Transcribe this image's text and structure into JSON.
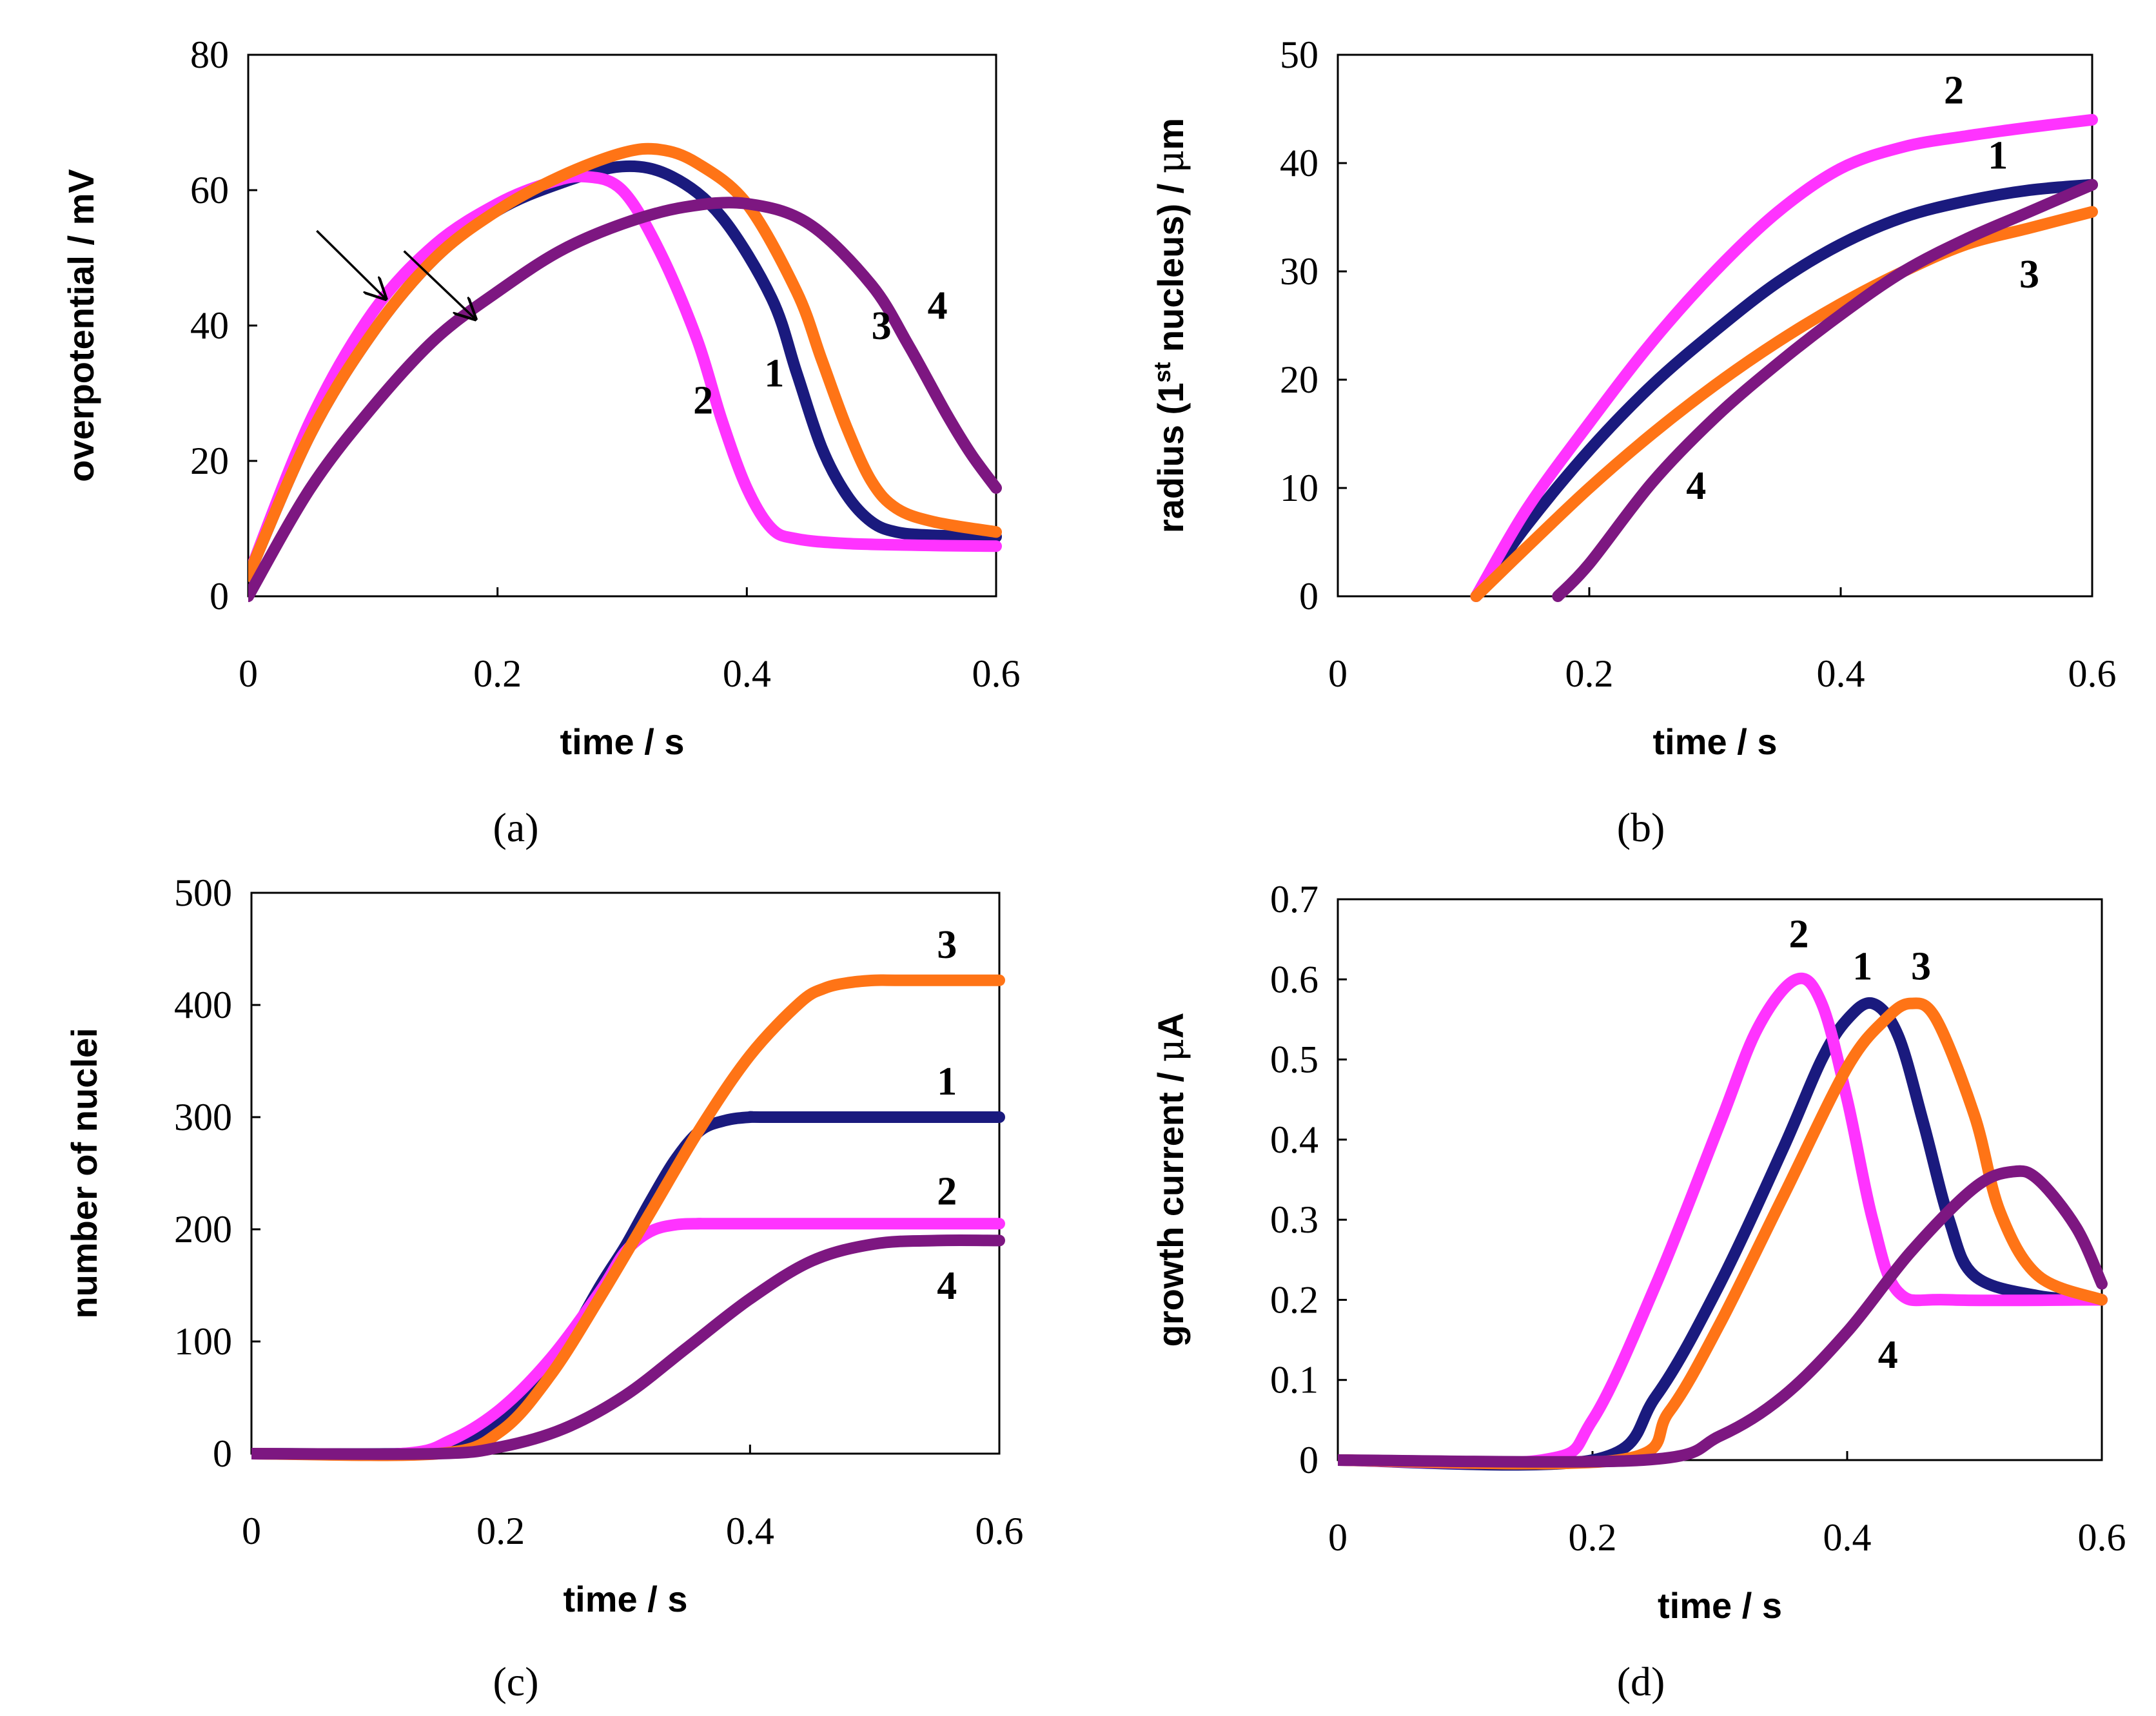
{
  "figure": {
    "series_colors": {
      "1": "#1a1a7e",
      "2": "#ff33ff",
      "3": "#ff7416",
      "4": "#7d1781"
    },
    "panels": [
      {
        "id": "a",
        "label": "(a)"
      },
      {
        "id": "b",
        "label": "(b)"
      },
      {
        "id": "c",
        "label": "(c)"
      },
      {
        "id": "d",
        "label": "(d)"
      }
    ]
  },
  "chart_data": [
    {
      "id": "a",
      "type": "line",
      "panel_label": "(a)",
      "xlabel": "time / s",
      "ylabel": "overpotential  / mV",
      "xlim": [
        0,
        0.6
      ],
      "ylim": [
        0,
        80
      ],
      "xticks": [
        0,
        0.2,
        0.4,
        0.6
      ],
      "xtick_labels": [
        "0",
        "0.2",
        "0.4",
        "0.6"
      ],
      "yticks": [
        0,
        20,
        40,
        60,
        80
      ],
      "ytick_labels": [
        "0",
        "20",
        "40",
        "60",
        "80"
      ],
      "series": [
        {
          "name": "1",
          "x": [
            0,
            0.05,
            0.1,
            0.15,
            0.2,
            0.25,
            0.3,
            0.34,
            0.38,
            0.42,
            0.44,
            0.46,
            0.48,
            0.5,
            0.52,
            0.55,
            0.6
          ],
          "y": [
            3,
            24,
            39,
            50,
            57,
            61,
            63.5,
            62,
            56,
            44,
            33,
            22,
            15,
            11,
            9.5,
            9,
            8.8
          ]
        },
        {
          "name": "2",
          "x": [
            0,
            0.05,
            0.1,
            0.15,
            0.2,
            0.24,
            0.27,
            0.3,
            0.33,
            0.36,
            0.38,
            0.4,
            0.42,
            0.44,
            0.48,
            0.55,
            0.6
          ],
          "y": [
            3,
            26,
            42,
            52,
            58,
            61,
            62,
            60,
            51,
            38,
            26,
            16,
            10,
            8.5,
            7.8,
            7.5,
            7.4
          ]
        },
        {
          "name": "3",
          "x": [
            0,
            0.05,
            0.1,
            0.15,
            0.2,
            0.25,
            0.3,
            0.33,
            0.36,
            0.4,
            0.44,
            0.46,
            0.48,
            0.5,
            0.52,
            0.55,
            0.6
          ],
          "y": [
            3,
            24,
            39,
            50,
            57,
            62,
            65.5,
            66,
            64,
            58,
            45,
            35,
            25,
            17,
            13,
            11,
            9.5
          ]
        },
        {
          "name": "4",
          "x": [
            0,
            0.05,
            0.1,
            0.15,
            0.2,
            0.25,
            0.3,
            0.35,
            0.4,
            0.45,
            0.5,
            0.53,
            0.56,
            0.58,
            0.6
          ],
          "y": [
            0,
            16,
            28,
            38,
            45,
            51,
            55,
            57.5,
            58,
            55,
            46,
            37,
            27,
            21,
            16
          ]
        }
      ],
      "series_labels": [
        {
          "series": "1",
          "text": "1",
          "at": [
            0.422,
            31
          ]
        },
        {
          "series": "2",
          "text": "2",
          "at": [
            0.365,
            27
          ]
        },
        {
          "series": "3",
          "text": "3",
          "at": [
            0.508,
            38
          ]
        },
        {
          "series": "4",
          "text": "4",
          "at": [
            0.553,
            41
          ]
        }
      ],
      "annotations": [
        {
          "type": "arrow",
          "from": [
            0.055,
            54
          ],
          "to": [
            0.11,
            44
          ]
        },
        {
          "type": "arrow",
          "from": [
            0.125,
            51
          ],
          "to": [
            0.182,
            41
          ]
        }
      ]
    },
    {
      "id": "b",
      "type": "line",
      "panel_label": "(b)",
      "xlabel": "time / s",
      "ylabel_parts": [
        "radius (1",
        "st",
        " nucleus) / ",
        "μ",
        "m"
      ],
      "xlim": [
        0,
        0.6
      ],
      "ylim": [
        0,
        50
      ],
      "xticks": [
        0,
        0.2,
        0.4,
        0.6
      ],
      "xtick_labels": [
        "0",
        "0.2",
        "0.4",
        "0.6"
      ],
      "yticks": [
        0,
        10,
        20,
        30,
        40,
        50
      ],
      "ytick_labels": [
        "0",
        "10",
        "20",
        "30",
        "40",
        "50"
      ],
      "series": [
        {
          "name": "1",
          "x": [
            0.11,
            0.15,
            0.2,
            0.25,
            0.3,
            0.35,
            0.4,
            0.45,
            0.5,
            0.55,
            0.6
          ],
          "y": [
            0,
            6.5,
            13.5,
            19.5,
            24.5,
            29,
            32.5,
            35,
            36.5,
            37.5,
            38
          ]
        },
        {
          "name": "2",
          "x": [
            0.11,
            0.15,
            0.2,
            0.25,
            0.3,
            0.35,
            0.4,
            0.45,
            0.5,
            0.55,
            0.6
          ],
          "y": [
            0,
            8,
            16,
            23.5,
            30,
            35.5,
            39.5,
            41.5,
            42.5,
            43.3,
            44
          ]
        },
        {
          "name": "3",
          "x": [
            0.11,
            0.15,
            0.2,
            0.25,
            0.3,
            0.35,
            0.4,
            0.45,
            0.5,
            0.55,
            0.6
          ],
          "y": [
            0,
            4.5,
            10,
            15,
            19.5,
            23.5,
            27,
            30,
            32.5,
            34,
            35.5
          ]
        },
        {
          "name": "4",
          "x": [
            0.175,
            0.2,
            0.25,
            0.3,
            0.35,
            0.4,
            0.45,
            0.5,
            0.55,
            0.6
          ],
          "y": [
            0,
            3,
            10.5,
            16.5,
            21.5,
            26,
            30,
            33,
            35.5,
            38
          ]
        }
      ],
      "series_labels": [
        {
          "series": "1",
          "text": "1",
          "at": [
            0.525,
            39.5
          ]
        },
        {
          "series": "2",
          "text": "2",
          "at": [
            0.49,
            45.5
          ]
        },
        {
          "series": "3",
          "text": "3",
          "at": [
            0.55,
            28.5
          ]
        },
        {
          "series": "4",
          "text": "4",
          "at": [
            0.285,
            9
          ]
        }
      ]
    },
    {
      "id": "c",
      "type": "line",
      "panel_label": "(c)",
      "xlabel": "time / s",
      "ylabel": "number of nuclei",
      "xlim": [
        0,
        0.6
      ],
      "ylim": [
        0,
        500
      ],
      "xticks": [
        0,
        0.2,
        0.4,
        0.6
      ],
      "xtick_labels": [
        "0",
        "0.2",
        "0.4",
        "0.6"
      ],
      "yticks": [
        0,
        100,
        200,
        300,
        400,
        500
      ],
      "ytick_labels": [
        "0",
        "100",
        "200",
        "300",
        "400",
        "500"
      ],
      "series": [
        {
          "name": "1",
          "x": [
            0,
            0.12,
            0.16,
            0.2,
            0.24,
            0.28,
            0.3,
            0.32,
            0.34,
            0.36,
            0.38,
            0.4,
            0.42,
            0.6
          ],
          "y": [
            0,
            0,
            5,
            28,
            75,
            150,
            185,
            225,
            262,
            288,
            297,
            300,
            300,
            300
          ]
        },
        {
          "name": "2",
          "x": [
            0,
            0.12,
            0.16,
            0.2,
            0.24,
            0.28,
            0.3,
            0.32,
            0.34,
            0.36,
            0.38,
            0.6
          ],
          "y": [
            0,
            0,
            12,
            40,
            85,
            145,
            180,
            198,
            204,
            205,
            205,
            205
          ]
        },
        {
          "name": "3",
          "x": [
            0,
            0.15,
            0.2,
            0.24,
            0.28,
            0.32,
            0.36,
            0.4,
            0.44,
            0.46,
            0.48,
            0.5,
            0.52,
            0.6
          ],
          "y": [
            0,
            0,
            20,
            70,
            140,
            215,
            290,
            355,
            402,
            415,
            420,
            422,
            422,
            422
          ]
        },
        {
          "name": "4",
          "x": [
            0,
            0.15,
            0.2,
            0.25,
            0.3,
            0.35,
            0.4,
            0.45,
            0.5,
            0.55,
            0.6
          ],
          "y": [
            0,
            0,
            6,
            22,
            52,
            95,
            138,
            172,
            187,
            190,
            190
          ]
        }
      ],
      "series_labels": [
        {
          "series": "1",
          "text": "1",
          "at": [
            0.558,
            320
          ]
        },
        {
          "series": "2",
          "text": "2",
          "at": [
            0.558,
            222
          ]
        },
        {
          "series": "3",
          "text": "3",
          "at": [
            0.558,
            442
          ]
        },
        {
          "series": "4",
          "text": "4",
          "at": [
            0.558,
            138
          ]
        }
      ]
    },
    {
      "id": "d",
      "type": "line",
      "panel_label": "(d)",
      "xlabel": "time / s",
      "ylabel_parts": [
        "growth current  / ",
        "μ",
        "A"
      ],
      "xlim": [
        0,
        0.6
      ],
      "ylim": [
        0,
        0.7
      ],
      "xticks": [
        0,
        0.2,
        0.4,
        0.6
      ],
      "xtick_labels": [
        "0",
        "0.2",
        "0.4",
        "0.6"
      ],
      "yticks": [
        0,
        0.1,
        0.2,
        0.3,
        0.4,
        0.5,
        0.6,
        0.7
      ],
      "ytick_labels": [
        "0",
        "0.1",
        "0.2",
        "0.3",
        "0.4",
        "0.5",
        "0.6",
        "0.7"
      ],
      "series": [
        {
          "name": "1",
          "x": [
            0,
            0.2,
            0.25,
            0.3,
            0.35,
            0.38,
            0.4,
            0.42,
            0.44,
            0.46,
            0.48,
            0.5,
            0.55,
            0.6
          ],
          "y": [
            0,
            0,
            0.08,
            0.22,
            0.39,
            0.5,
            0.55,
            0.57,
            0.53,
            0.42,
            0.3,
            0.23,
            0.205,
            0.2
          ]
        },
        {
          "name": "2",
          "x": [
            0,
            0.16,
            0.2,
            0.25,
            0.3,
            0.33,
            0.36,
            0.38,
            0.4,
            0.42,
            0.44,
            0.48,
            0.6
          ],
          "y": [
            0,
            0,
            0.05,
            0.22,
            0.42,
            0.54,
            0.6,
            0.57,
            0.45,
            0.3,
            0.21,
            0.2,
            0.2
          ]
        },
        {
          "name": "3",
          "x": [
            0,
            0.22,
            0.26,
            0.3,
            0.35,
            0.4,
            0.43,
            0.45,
            0.47,
            0.5,
            0.52,
            0.55,
            0.6
          ],
          "y": [
            0,
            0,
            0.06,
            0.17,
            0.33,
            0.49,
            0.55,
            0.57,
            0.55,
            0.43,
            0.31,
            0.23,
            0.2
          ]
        },
        {
          "name": "4",
          "x": [
            0,
            0.24,
            0.3,
            0.35,
            0.4,
            0.45,
            0.5,
            0.53,
            0.55,
            0.58,
            0.6
          ],
          "y": [
            0,
            0,
            0.03,
            0.08,
            0.16,
            0.26,
            0.34,
            0.36,
            0.35,
            0.29,
            0.22
          ]
        }
      ],
      "series_labels": [
        {
          "series": "1",
          "text": "1",
          "at": [
            0.412,
            0.6
          ]
        },
        {
          "series": "2",
          "text": "2",
          "at": [
            0.362,
            0.64
          ]
        },
        {
          "series": "3",
          "text": "3",
          "at": [
            0.458,
            0.6
          ]
        },
        {
          "series": "4",
          "text": "4",
          "at": [
            0.432,
            0.115
          ]
        }
      ]
    }
  ]
}
